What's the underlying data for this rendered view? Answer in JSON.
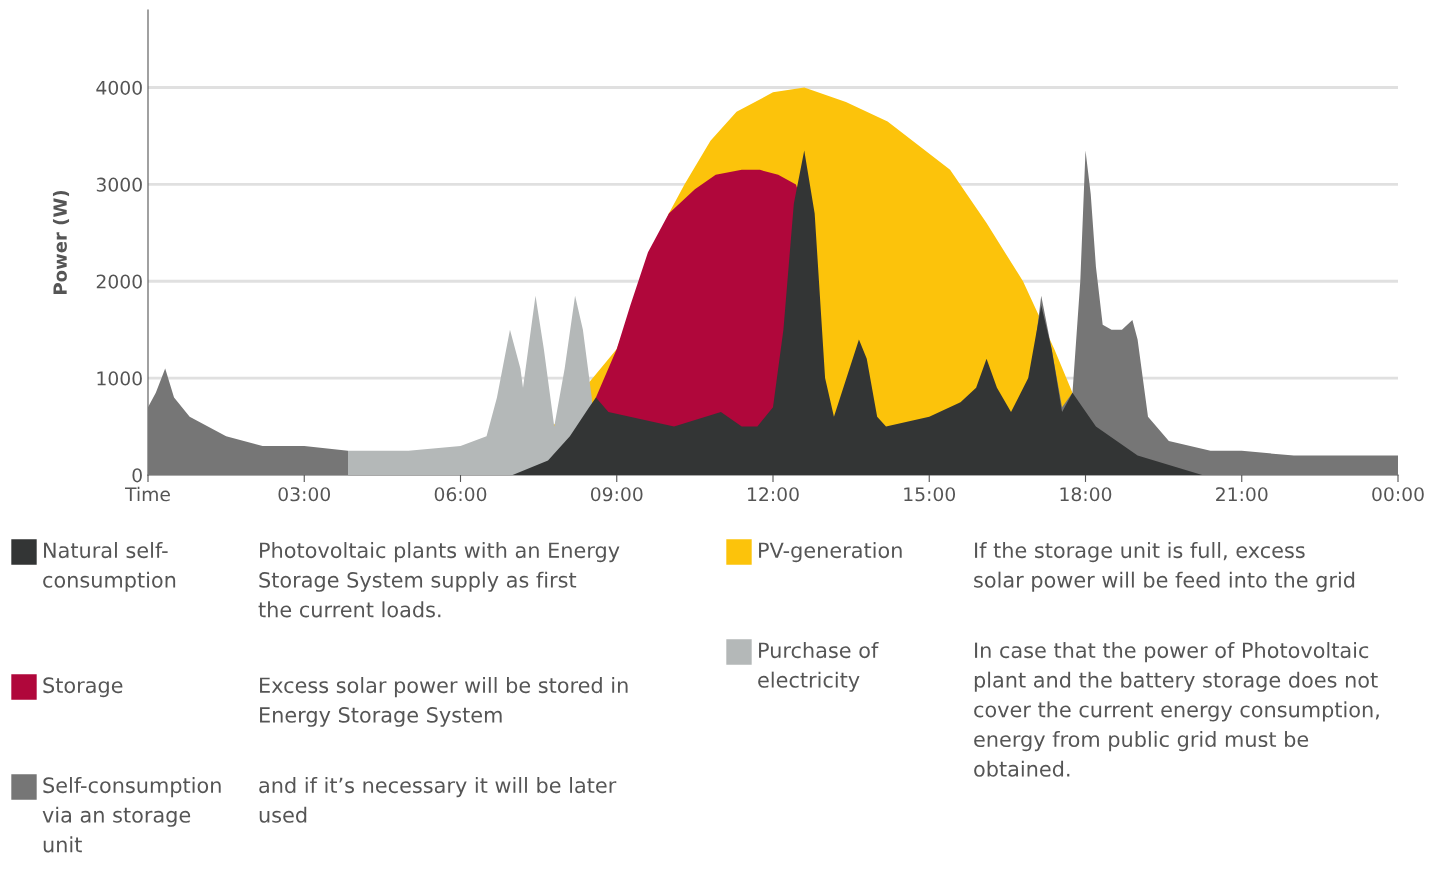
{
  "chart_data": {
    "type": "area",
    "ylabel": "Power (W)",
    "xlim": [
      0,
      24
    ],
    "ylim": [
      0,
      4800
    ],
    "xticks": [
      {
        "value": 0,
        "label": "Time"
      },
      {
        "value": 3,
        "label": "03:00"
      },
      {
        "value": 6,
        "label": "06:00"
      },
      {
        "value": 9,
        "label": "09:00"
      },
      {
        "value": 12,
        "label": "12:00"
      },
      {
        "value": 15,
        "label": "15:00"
      },
      {
        "value": 18,
        "label": "18:00"
      },
      {
        "value": 21,
        "label": "21:00"
      },
      {
        "value": 24,
        "label": "00:00"
      }
    ],
    "yticks": [
      0,
      1000,
      2000,
      3000,
      4000
    ],
    "grid": "y",
    "legend": "bottom",
    "series": [
      {
        "name": "PV-generation",
        "color": "#fcc30b",
        "x": [
          7.0,
          9.0,
          10.0,
          10.3,
          10.8,
          11.3,
          12.0,
          12.6,
          13.4,
          14.2,
          15.4,
          16.1,
          16.8,
          17.4,
          17.75,
          20.2
        ],
        "values": [
          0,
          1300,
          2700,
          3000,
          3450,
          3750,
          3950,
          4000,
          3850,
          3650,
          3150,
          2600,
          2000,
          1300,
          850,
          0
        ]
      },
      {
        "name": "Storage",
        "color": "#b0073b",
        "x": [
          8.45,
          8.6,
          9.0,
          9.26,
          9.6,
          10.0,
          10.5,
          10.9,
          11.4,
          11.75,
          12.1,
          12.44,
          12.5,
          12.55
        ],
        "values": [
          0,
          800,
          1300,
          1750,
          2300,
          2700,
          2950,
          3100,
          3150,
          3150,
          3100,
          3000,
          2900,
          0
        ]
      },
      {
        "name": "Purchase of\nelectricity",
        "color": "#b4b8b8",
        "x": [
          3.84,
          5.0,
          6.0,
          6.5,
          6.7,
          6.95,
          7.15,
          7.2,
          7.44,
          7.6,
          7.8,
          8.0,
          8.2,
          8.35,
          8.52,
          8.6
        ],
        "values": [
          250,
          250,
          300,
          400,
          800,
          1500,
          1100,
          900,
          1850,
          1300,
          500,
          1100,
          1850,
          1500,
          800,
          0
        ]
      },
      {
        "name": "Self-consumption\nvia an storage\nunit",
        "color": "#767676",
        "x": [
          0,
          0.15,
          0.33,
          0.5,
          0.8,
          1.5,
          2.2,
          3.0,
          3.84,
          3.85,
          17.0,
          17.15,
          17.35,
          17.55,
          17.75,
          17.9,
          18.0,
          18.1,
          18.2,
          18.33,
          18.5,
          18.7,
          18.9,
          19.0,
          19.2,
          19.6,
          20.4,
          21.0,
          22.0,
          23.0,
          24.0
        ],
        "values": [
          700,
          850,
          1100,
          800,
          600,
          400,
          300,
          300,
          250,
          null,
          1200,
          1850,
          1300,
          700,
          850,
          2000,
          3350,
          2900,
          2150,
          1550,
          1500,
          1500,
          1600,
          1400,
          600,
          350,
          250,
          250,
          200,
          200,
          200
        ]
      },
      {
        "name": "Natural self-\nconsumption",
        "color": "#333535",
        "x": [
          7.0,
          7.68,
          8.1,
          8.47,
          8.6,
          8.84,
          10.1,
          11.0,
          11.4,
          11.7,
          12.0,
          12.2,
          12.4,
          12.6,
          12.8,
          13.0,
          13.17,
          13.35,
          13.65,
          13.8,
          14.0,
          14.17,
          15.0,
          15.6,
          15.9,
          16.1,
          16.3,
          16.57,
          16.9,
          17.15,
          17.35,
          17.55,
          17.75,
          18.2,
          19.0,
          20.24
        ],
        "values": [
          0,
          150,
          400,
          700,
          800,
          650,
          500,
          650,
          500,
          500,
          700,
          1500,
          2800,
          3350,
          2700,
          1000,
          600,
          900,
          1400,
          1200,
          600,
          500,
          600,
          750,
          900,
          1200,
          900,
          650,
          1000,
          1750,
          1300,
          650,
          850,
          500,
          200,
          0
        ]
      }
    ],
    "annotations": [
      "If the storage unit is full, excess\nsolar power will be feed into the grid",
      "Excess solar power will be stored in\nEnergy Storage System",
      "In case that the power of Photovoltaic\nplant and the battery storage does not\ncover the current energy consumption,\nenergy from public grid must be\nobtained.",
      "and if it’s necessary it will be later\nused",
      "Photovoltaic plants with an Energy\nStorage System supply as first\nthe current loads."
    ]
  }
}
